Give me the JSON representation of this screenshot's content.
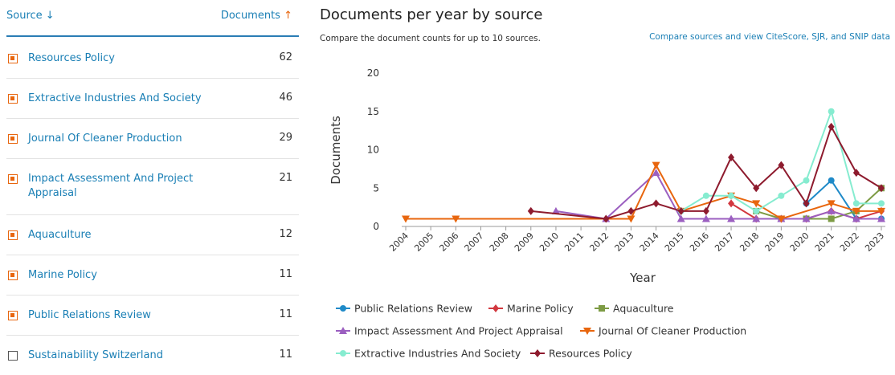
{
  "sidebar": {
    "source_header": "Source",
    "documents_header": "Documents",
    "rows": [
      {
        "name": "Resources Policy",
        "count": 62,
        "checked": true
      },
      {
        "name": "Extractive Industries And Society",
        "count": 46,
        "checked": true
      },
      {
        "name": "Journal Of Cleaner Production",
        "count": 29,
        "checked": true
      },
      {
        "name": "Impact Assessment And Project Appraisal",
        "count": 21,
        "checked": true
      },
      {
        "name": "Aquaculture",
        "count": 12,
        "checked": true
      },
      {
        "name": "Marine Policy",
        "count": 11,
        "checked": true
      },
      {
        "name": "Public Relations Review",
        "count": 11,
        "checked": true
      },
      {
        "name": "Sustainability Switzerland",
        "count": 11,
        "checked": false
      }
    ]
  },
  "compare_link": "Compare sources and view CiteScore, SJR, and SNIP data",
  "chart_data": {
    "type": "line",
    "title": "Documents per year by source",
    "subtitle": "Compare the document counts for up to 10 sources.",
    "x_label": "Year",
    "y_label": "Documents",
    "xlim": [
      2004,
      2023
    ],
    "xticks": [
      2004,
      2005,
      2006,
      2007,
      2008,
      2009,
      2010,
      2011,
      2012,
      2013,
      2014,
      2015,
      2016,
      2017,
      2018,
      2019,
      2020,
      2021,
      2022,
      2023
    ],
    "ylim": [
      0,
      20
    ],
    "yticks": [
      0,
      5,
      10,
      15,
      20
    ],
    "series": [
      {
        "name": "Public Relations Review",
        "color": "#1f8ac8",
        "marker": "circle",
        "x": [
          2020,
          2021,
          2022,
          2023
        ],
        "values": [
          3,
          6,
          1,
          1
        ]
      },
      {
        "name": "Marine Policy",
        "color": "#d2383f",
        "marker": "diamond",
        "x": [
          2017,
          2018,
          2019,
          2020,
          2021,
          2022,
          2023
        ],
        "values": [
          3,
          1,
          1,
          1,
          2,
          1,
          2
        ]
      },
      {
        "name": "Aquaculture",
        "color": "#7d9b44",
        "marker": "square",
        "x": [
          2018,
          2019,
          2020,
          2021,
          2022,
          2023
        ],
        "values": [
          2,
          1,
          1,
          1,
          2,
          5
        ]
      },
      {
        "name": "Impact Assessment And Project Appraisal",
        "color": "#9b5fc0",
        "marker": "triangle-up",
        "x": [
          2010,
          2012,
          2014,
          2015,
          2016,
          2017,
          2018,
          2019,
          2020,
          2021,
          2022,
          2023
        ],
        "values": [
          2,
          1,
          7,
          1,
          1,
          1,
          1,
          1,
          1,
          2,
          1,
          1
        ]
      },
      {
        "name": "Journal Of Cleaner Production",
        "color": "#e8660e",
        "marker": "triangle-down",
        "x": [
          2004,
          2006,
          2013,
          2014,
          2015,
          2017,
          2018,
          2019,
          2021,
          2022,
          2023
        ],
        "values": [
          1,
          1,
          1,
          8,
          2,
          4,
          3,
          1,
          3,
          2,
          2
        ]
      },
      {
        "name": "Extractive Industries And Society",
        "color": "#86ecd0",
        "marker": "circle",
        "x": [
          2015,
          2016,
          2017,
          2018,
          2019,
          2020,
          2021,
          2022,
          2023
        ],
        "values": [
          2,
          4,
          4,
          2,
          4,
          6,
          15,
          3,
          3
        ]
      },
      {
        "name": "Resources Policy",
        "color": "#8e1b2e",
        "marker": "diamond",
        "x": [
          2009,
          2012,
          2013,
          2014,
          2015,
          2016,
          2017,
          2018,
          2019,
          2020,
          2021,
          2022,
          2023
        ],
        "values": [
          2,
          1,
          2,
          3,
          2,
          2,
          9,
          5,
          8,
          3,
          13,
          7,
          5
        ]
      }
    ]
  }
}
